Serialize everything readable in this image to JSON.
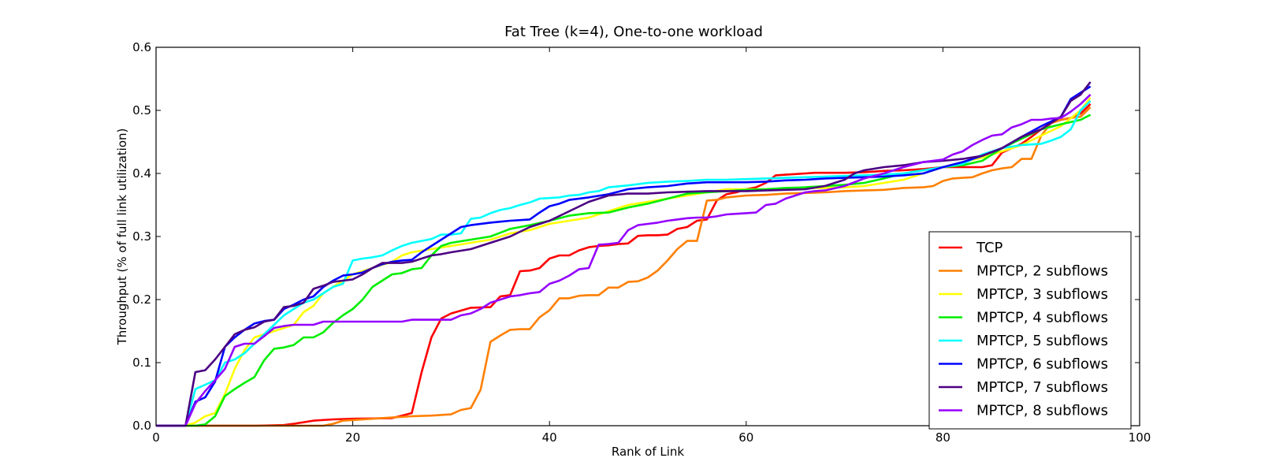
{
  "chart_data": {
    "type": "line",
    "title": "Fat Tree (k=4), One-to-one workload",
    "xlabel": "Rank of Link",
    "ylabel": "Throughput (% of full link utilization)",
    "xlim": [
      0,
      100
    ],
    "ylim": [
      0,
      0.6
    ],
    "xticks": [
      0,
      20,
      40,
      60,
      80,
      100
    ],
    "yticks": [
      0.0,
      0.1,
      0.2,
      0.3,
      0.4,
      0.5,
      0.6
    ],
    "xtick_labels": [
      "0",
      "20",
      "40",
      "60",
      "80",
      "100"
    ],
    "ytick_labels": [
      "0.0",
      "0.1",
      "0.2",
      "0.3",
      "0.4",
      "0.5",
      "0.6"
    ],
    "grid": false,
    "legend_position": "lower-right",
    "series": [
      {
        "name": "TCP",
        "color": "#ff0000",
        "x": [
          0,
          3,
          10,
          13,
          14,
          16,
          18,
          20,
          24,
          25,
          26,
          27,
          28,
          29,
          30,
          32,
          34,
          35,
          36,
          37,
          38,
          39,
          40,
          41,
          42,
          43,
          44,
          45,
          46,
          47,
          48,
          49,
          50,
          51,
          52,
          53,
          54,
          55,
          56,
          57,
          58,
          59,
          60,
          61,
          62,
          63,
          64,
          65,
          66,
          67,
          68,
          69,
          70,
          72,
          74,
          76,
          78,
          80,
          82,
          84,
          85,
          86,
          87,
          88,
          89,
          90,
          91,
          92,
          93,
          94,
          95
        ],
        "y": [
          0,
          0,
          0,
          0.001,
          0.003,
          0.008,
          0.01,
          0.011,
          0.012,
          0.016,
          0.02,
          0.085,
          0.14,
          0.17,
          0.178,
          0.187,
          0.188,
          0.205,
          0.207,
          0.245,
          0.246,
          0.25,
          0.265,
          0.27,
          0.27,
          0.278,
          0.283,
          0.285,
          0.286,
          0.288,
          0.289,
          0.301,
          0.302,
          0.302,
          0.303,
          0.312,
          0.315,
          0.325,
          0.327,
          0.357,
          0.367,
          0.37,
          0.375,
          0.378,
          0.385,
          0.397,
          0.398,
          0.399,
          0.4,
          0.401,
          0.401,
          0.401,
          0.401,
          0.402,
          0.404,
          0.405,
          0.407,
          0.41,
          0.41,
          0.41,
          0.413,
          0.433,
          0.44,
          0.447,
          0.458,
          0.47,
          0.48,
          0.485,
          0.488,
          0.495,
          0.51
        ]
      },
      {
        "name": "MPTCP, 2 subflows",
        "color": "#ff7f00",
        "x": [
          0,
          3,
          17,
          18,
          19,
          20,
          22,
          24,
          26,
          28,
          30,
          31,
          32,
          33,
          34,
          35,
          36,
          37,
          38,
          39,
          40,
          41,
          42,
          43,
          44,
          45,
          46,
          47,
          48,
          49,
          50,
          51,
          52,
          53,
          54,
          55,
          56,
          57,
          58,
          60,
          62,
          64,
          66,
          68,
          70,
          72,
          74,
          76,
          78,
          79,
          80,
          81,
          82,
          83,
          84,
          85,
          86,
          87,
          88,
          89,
          90,
          91,
          92,
          93,
          94,
          95
        ],
        "y": [
          0,
          0,
          0,
          0.003,
          0.008,
          0.009,
          0.011,
          0.013,
          0.015,
          0.016,
          0.018,
          0.025,
          0.028,
          0.057,
          0.133,
          0.143,
          0.152,
          0.153,
          0.153,
          0.172,
          0.183,
          0.202,
          0.202,
          0.206,
          0.207,
          0.207,
          0.219,
          0.219,
          0.228,
          0.229,
          0.235,
          0.246,
          0.262,
          0.28,
          0.293,
          0.293,
          0.357,
          0.358,
          0.362,
          0.365,
          0.366,
          0.368,
          0.369,
          0.37,
          0.372,
          0.373,
          0.374,
          0.377,
          0.378,
          0.38,
          0.388,
          0.392,
          0.393,
          0.394,
          0.4,
          0.405,
          0.408,
          0.41,
          0.423,
          0.423,
          0.46,
          0.48,
          0.485,
          0.488,
          0.49,
          0.505
        ]
      },
      {
        "name": "MPTCP, 3 subflows",
        "color": "#ffff00",
        "x": [
          0,
          3,
          4,
          5,
          6,
          7,
          8,
          9,
          10,
          11,
          12,
          13,
          14,
          15,
          16,
          17,
          18,
          19,
          20,
          21,
          22,
          23,
          24,
          25,
          26,
          28,
          30,
          32,
          34,
          36,
          38,
          40,
          42,
          44,
          46,
          48,
          50,
          52,
          54,
          56,
          58,
          60,
          62,
          64,
          66,
          68,
          70,
          72,
          74,
          76,
          78,
          80,
          82,
          84,
          86,
          88,
          90,
          92,
          94,
          95
        ],
        "y": [
          0,
          0,
          0.005,
          0.015,
          0.02,
          0.05,
          0.09,
          0.12,
          0.14,
          0.145,
          0.15,
          0.155,
          0.16,
          0.18,
          0.19,
          0.21,
          0.22,
          0.23,
          0.24,
          0.245,
          0.25,
          0.255,
          0.26,
          0.27,
          0.275,
          0.28,
          0.285,
          0.29,
          0.295,
          0.305,
          0.31,
          0.32,
          0.325,
          0.33,
          0.34,
          0.35,
          0.355,
          0.36,
          0.365,
          0.37,
          0.375,
          0.375,
          0.375,
          0.375,
          0.377,
          0.377,
          0.378,
          0.38,
          0.385,
          0.39,
          0.4,
          0.41,
          0.418,
          0.425,
          0.435,
          0.445,
          0.46,
          0.475,
          0.5,
          0.52
        ]
      },
      {
        "name": "MPTCP, 4 subflows",
        "color": "#00ee00",
        "x": [
          0,
          3,
          4,
          5,
          6,
          7,
          8,
          9,
          10,
          11,
          12,
          13,
          14,
          15,
          16,
          17,
          18,
          19,
          20,
          21,
          22,
          23,
          24,
          25,
          26,
          27,
          28,
          29,
          30,
          32,
          34,
          36,
          38,
          40,
          42,
          44,
          46,
          48,
          50,
          52,
          54,
          56,
          58,
          60,
          62,
          64,
          66,
          68,
          70,
          72,
          74,
          76,
          78,
          80,
          82,
          84,
          86,
          88,
          90,
          92,
          94,
          95
        ],
        "y": [
          0,
          0,
          0,
          0.002,
          0.015,
          0.047,
          0.058,
          0.068,
          0.077,
          0.104,
          0.122,
          0.124,
          0.128,
          0.14,
          0.14,
          0.148,
          0.163,
          0.175,
          0.185,
          0.2,
          0.22,
          0.23,
          0.24,
          0.242,
          0.248,
          0.25,
          0.27,
          0.285,
          0.29,
          0.295,
          0.3,
          0.312,
          0.318,
          0.325,
          0.333,
          0.337,
          0.338,
          0.346,
          0.352,
          0.36,
          0.368,
          0.37,
          0.372,
          0.374,
          0.375,
          0.377,
          0.378,
          0.38,
          0.382,
          0.385,
          0.392,
          0.4,
          0.405,
          0.41,
          0.413,
          0.42,
          0.44,
          0.455,
          0.47,
          0.478,
          0.485,
          0.493
        ]
      },
      {
        "name": "MPTCP, 5 subflows",
        "color": "#00ffff",
        "x": [
          0,
          3,
          4,
          5,
          6,
          7,
          8,
          9,
          10,
          11,
          12,
          13,
          14,
          15,
          16,
          17,
          18,
          19,
          20,
          21,
          22,
          23,
          24,
          25,
          26,
          27,
          28,
          29,
          30,
          31,
          32,
          33,
          34,
          35,
          36,
          37,
          38,
          39,
          40,
          41,
          42,
          43,
          44,
          45,
          46,
          48,
          50,
          52,
          54,
          56,
          58,
          60,
          62,
          64,
          66,
          68,
          70,
          72,
          74,
          76,
          78,
          80,
          82,
          84,
          86,
          88,
          89,
          90,
          91,
          92,
          93,
          94,
          95
        ],
        "y": [
          0,
          0,
          0.058,
          0.065,
          0.072,
          0.1,
          0.105,
          0.115,
          0.13,
          0.145,
          0.16,
          0.175,
          0.185,
          0.195,
          0.2,
          0.21,
          0.22,
          0.225,
          0.262,
          0.265,
          0.267,
          0.27,
          0.278,
          0.285,
          0.29,
          0.293,
          0.296,
          0.303,
          0.303,
          0.305,
          0.328,
          0.33,
          0.337,
          0.342,
          0.345,
          0.35,
          0.354,
          0.36,
          0.361,
          0.362,
          0.365,
          0.366,
          0.37,
          0.372,
          0.378,
          0.381,
          0.385,
          0.387,
          0.388,
          0.39,
          0.39,
          0.391,
          0.392,
          0.393,
          0.394,
          0.395,
          0.396,
          0.397,
          0.398,
          0.4,
          0.405,
          0.41,
          0.415,
          0.43,
          0.44,
          0.445,
          0.446,
          0.447,
          0.452,
          0.458,
          0.47,
          0.5,
          0.515
        ]
      },
      {
        "name": "MPTCP, 6 subflows",
        "color": "#0000ff",
        "x": [
          0,
          3,
          4,
          5,
          6,
          7,
          8,
          9,
          10,
          11,
          12,
          13,
          14,
          15,
          16,
          17,
          18,
          19,
          20,
          21,
          22,
          23,
          24,
          25,
          26,
          27,
          28,
          29,
          30,
          31,
          32,
          34,
          36,
          38,
          39,
          40,
          41,
          42,
          44,
          46,
          48,
          50,
          52,
          54,
          56,
          58,
          60,
          62,
          64,
          66,
          68,
          70,
          72,
          74,
          76,
          78,
          80,
          82,
          84,
          86,
          88,
          90,
          92,
          93,
          94,
          95
        ],
        "y": [
          0,
          0,
          0.038,
          0.045,
          0.07,
          0.125,
          0.14,
          0.152,
          0.162,
          0.166,
          0.168,
          0.185,
          0.192,
          0.2,
          0.205,
          0.22,
          0.23,
          0.238,
          0.24,
          0.243,
          0.25,
          0.256,
          0.26,
          0.262,
          0.263,
          0.275,
          0.285,
          0.295,
          0.305,
          0.315,
          0.318,
          0.322,
          0.325,
          0.327,
          0.338,
          0.348,
          0.352,
          0.358,
          0.362,
          0.367,
          0.375,
          0.378,
          0.38,
          0.384,
          0.386,
          0.386,
          0.386,
          0.387,
          0.389,
          0.39,
          0.392,
          0.393,
          0.394,
          0.395,
          0.397,
          0.4,
          0.41,
          0.418,
          0.428,
          0.44,
          0.458,
          0.475,
          0.49,
          0.518,
          0.528,
          0.538
        ]
      },
      {
        "name": "MPTCP, 7 subflows",
        "color": "#4b0082",
        "x": [
          0,
          3,
          4,
          5,
          6,
          7,
          8,
          9,
          10,
          11,
          12,
          13,
          14,
          15,
          16,
          17,
          18,
          19,
          20,
          21,
          22,
          23,
          24,
          25,
          26,
          27,
          28,
          29,
          30,
          32,
          34,
          36,
          38,
          40,
          42,
          44,
          46,
          48,
          50,
          52,
          54,
          56,
          58,
          60,
          62,
          64,
          66,
          68,
          70,
          71,
          72,
          74,
          76,
          78,
          80,
          82,
          84,
          86,
          88,
          90,
          92,
          93,
          94,
          95
        ],
        "y": [
          0,
          0,
          0.085,
          0.088,
          0.105,
          0.125,
          0.145,
          0.152,
          0.156,
          0.165,
          0.168,
          0.188,
          0.19,
          0.195,
          0.217,
          0.222,
          0.228,
          0.23,
          0.232,
          0.24,
          0.25,
          0.258,
          0.258,
          0.258,
          0.26,
          0.265,
          0.27,
          0.272,
          0.275,
          0.28,
          0.29,
          0.3,
          0.315,
          0.325,
          0.34,
          0.355,
          0.365,
          0.368,
          0.368,
          0.37,
          0.371,
          0.372,
          0.372,
          0.372,
          0.373,
          0.374,
          0.375,
          0.38,
          0.39,
          0.4,
          0.405,
          0.41,
          0.413,
          0.418,
          0.42,
          0.423,
          0.428,
          0.44,
          0.458,
          0.47,
          0.49,
          0.515,
          0.525,
          0.545
        ]
      },
      {
        "name": "MPTCP, 8 subflows",
        "color": "#9400ff",
        "x": [
          0,
          3,
          4,
          5,
          6,
          7,
          8,
          9,
          10,
          11,
          12,
          13,
          14,
          15,
          16,
          17,
          18,
          20,
          22,
          24,
          25,
          26,
          27,
          28,
          29,
          30,
          31,
          32,
          33,
          34,
          35,
          36,
          37,
          38,
          39,
          40,
          41,
          42,
          43,
          44,
          45,
          46,
          47,
          48,
          49,
          50,
          51,
          52,
          53,
          54,
          55,
          56,
          57,
          58,
          59,
          60,
          61,
          62,
          63,
          64,
          65,
          66,
          67,
          68,
          70,
          72,
          74,
          76,
          78,
          80,
          81,
          82,
          83,
          84,
          85,
          86,
          87,
          88,
          89,
          90,
          91,
          92,
          93,
          94,
          95
        ],
        "y": [
          0,
          0,
          0.035,
          0.055,
          0.072,
          0.09,
          0.125,
          0.13,
          0.13,
          0.142,
          0.155,
          0.158,
          0.16,
          0.16,
          0.16,
          0.165,
          0.165,
          0.165,
          0.165,
          0.165,
          0.165,
          0.168,
          0.168,
          0.168,
          0.168,
          0.168,
          0.175,
          0.178,
          0.185,
          0.195,
          0.2,
          0.205,
          0.207,
          0.21,
          0.212,
          0.225,
          0.23,
          0.238,
          0.248,
          0.25,
          0.287,
          0.288,
          0.29,
          0.31,
          0.318,
          0.32,
          0.322,
          0.325,
          0.327,
          0.329,
          0.33,
          0.33,
          0.332,
          0.335,
          0.336,
          0.337,
          0.338,
          0.35,
          0.352,
          0.36,
          0.365,
          0.37,
          0.372,
          0.373,
          0.38,
          0.392,
          0.4,
          0.41,
          0.418,
          0.422,
          0.43,
          0.435,
          0.445,
          0.453,
          0.46,
          0.462,
          0.473,
          0.478,
          0.485,
          0.485,
          0.487,
          0.488,
          0.498,
          0.51,
          0.525
        ]
      }
    ]
  }
}
